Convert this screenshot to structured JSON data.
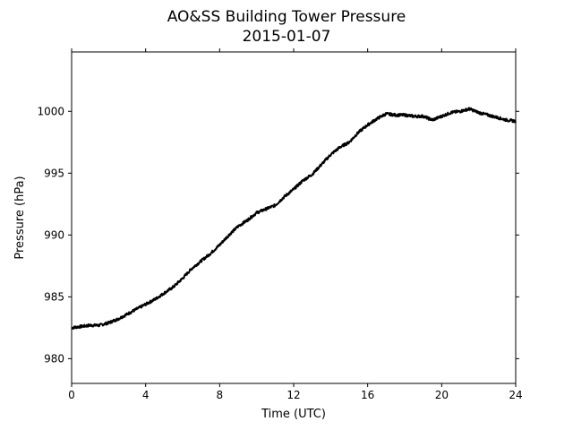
{
  "chart_data": {
    "type": "line",
    "title": "AO&SS Building Tower Pressure",
    "subtitle": "2015-01-07",
    "xlabel": "Time (UTC)",
    "ylabel": "Pressure (hPa)",
    "xlim": [
      0,
      24
    ],
    "ylim": [
      978,
      1004.8
    ],
    "x_ticks": [
      0,
      4,
      8,
      12,
      16,
      20,
      24
    ],
    "x_tick_labels": [
      "0",
      "4",
      "8",
      "12",
      "16",
      "20",
      "24"
    ],
    "y_ticks": [
      980,
      985,
      990,
      995,
      1000
    ],
    "y_tick_labels": [
      "980",
      "985",
      "990",
      "995",
      "1000"
    ],
    "grid": false,
    "line_color": "#000000",
    "series": [
      {
        "x": [
          0,
          0.5,
          1,
          1.5,
          2,
          2.5,
          3,
          3.5,
          4,
          4.5,
          5,
          5.5,
          6,
          6.5,
          7,
          7.5,
          8,
          8.5,
          9,
          9.5,
          10,
          10.5,
          11,
          11.5,
          12,
          12.5,
          13,
          13.5,
          14,
          14.5,
          15,
          15.5,
          16,
          16.5,
          17,
          17.5,
          18,
          18.5,
          19,
          19.5,
          20,
          20.5,
          21,
          21.5,
          22,
          22.5,
          23,
          23.5,
          24
        ],
        "y": [
          982.5,
          982.6,
          982.7,
          982.7,
          982.9,
          983.2,
          983.6,
          984.0,
          984.4,
          984.8,
          985.3,
          985.8,
          986.5,
          987.3,
          987.9,
          988.5,
          989.2,
          990.0,
          990.7,
          991.2,
          991.8,
          992.1,
          992.4,
          993.1,
          993.7,
          994.4,
          994.9,
          995.7,
          996.5,
          997.1,
          997.5,
          998.3,
          998.9,
          999.4,
          999.8,
          999.7,
          999.7,
          999.6,
          999.6,
          999.3,
          999.6,
          999.9,
          1000.0,
          1000.2,
          999.9,
          999.7,
          999.5,
          999.3,
          999.2
        ]
      }
    ]
  }
}
